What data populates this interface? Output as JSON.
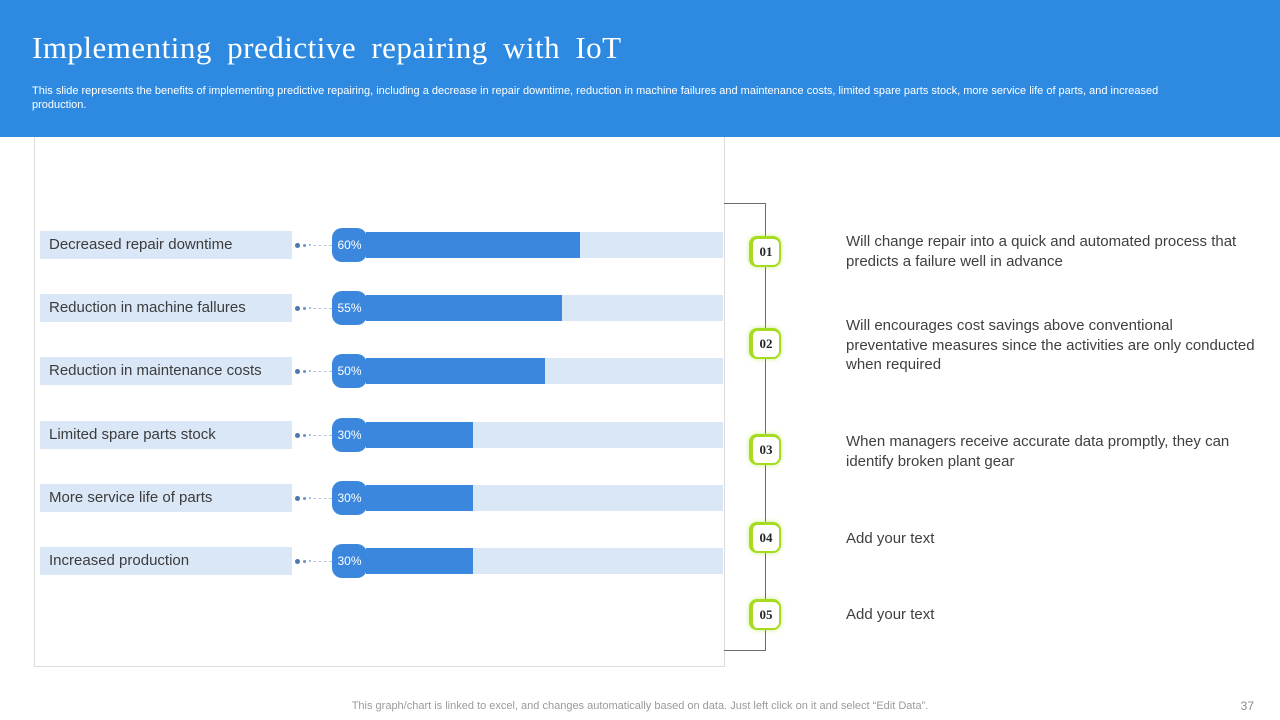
{
  "slide": {
    "title": "Implementing predictive repairing with IoT",
    "subtitle": "This slide represents the benefits of implementing predictive repairing, including a decrease in repair downtime, reduction in machine failures and maintenance costs, limited spare parts stock, more service life of parts, and increased production.",
    "footer": "This graph/chart is linked to excel, and changes automatically based on data. Just left click on it and select “Edit Data”.",
    "page_number": "37"
  },
  "colors": {
    "header_bg": "#2E8AE1",
    "bar_fill": "#3B87DD",
    "bar_track": "#D9E7F6",
    "label_bg": "#D9E7F6",
    "badge_border": "#A6DC20",
    "footer_text": "#9A9A9A"
  },
  "chart_data": {
    "type": "bar",
    "orientation": "horizontal",
    "title": "",
    "categories": [
      "Decreased repair downtime",
      "Reduction in machine fallures",
      "Reduction in maintenance costs",
      "Limited spare parts stock",
      "More service life of parts",
      "Increased production"
    ],
    "values": [
      60,
      55,
      50,
      30,
      30,
      30
    ],
    "value_labels": [
      "60%",
      "55%",
      "50%",
      "30%",
      "30%",
      "30%"
    ],
    "unit": "%",
    "xlim": [
      0,
      100
    ],
    "legend": false,
    "gridlines": false
  },
  "annotations": [
    {
      "number": "01",
      "text": "Will change repair into a quick and automated process that predicts a failure well in advance"
    },
    {
      "number": "02",
      "text": "Will encourages cost savings above conventional preventative measures since the activities are only conducted when required"
    },
    {
      "number": "03",
      "text": "When managers receive accurate data promptly, they can identify broken plant gear"
    },
    {
      "number": "04",
      "text": "Add your text"
    },
    {
      "number": "05",
      "text": "Add your text"
    }
  ]
}
